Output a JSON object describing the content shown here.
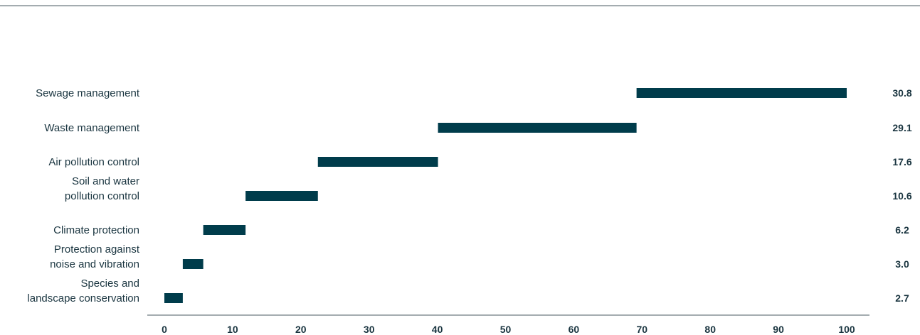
{
  "chart_data": {
    "type": "bar",
    "subtype": "waterfall-horizontal",
    "title": "",
    "xlabel": "",
    "ylabel": "",
    "xlim": [
      0,
      100
    ],
    "xticks": [
      0,
      10,
      20,
      30,
      40,
      50,
      60,
      70,
      80,
      90,
      100
    ],
    "grid": false,
    "legend": "none",
    "bar_color": "#003c4b",
    "text_color": "#1a3540",
    "rule_color": "#4a5a62",
    "categories": [
      {
        "label_lines": [
          "Sewage management"
        ],
        "value": 30.8,
        "value_label": "30.8"
      },
      {
        "label_lines": [
          "Waste management"
        ],
        "value": 29.1,
        "value_label": "29.1"
      },
      {
        "label_lines": [
          "Air pollution control"
        ],
        "value": 17.6,
        "value_label": "17.6"
      },
      {
        "label_lines": [
          "Soil and water",
          "pollution control"
        ],
        "value": 10.6,
        "value_label": "10.6"
      },
      {
        "label_lines": [
          "Climate protection"
        ],
        "value": 6.2,
        "value_label": "6.2"
      },
      {
        "label_lines": [
          "Protection against",
          "noise and vibration"
        ],
        "value": 3.0,
        "value_label": "3.0"
      },
      {
        "label_lines": [
          "Species and",
          "landscape conservation"
        ],
        "value": 2.7,
        "value_label": "2.7"
      }
    ]
  }
}
